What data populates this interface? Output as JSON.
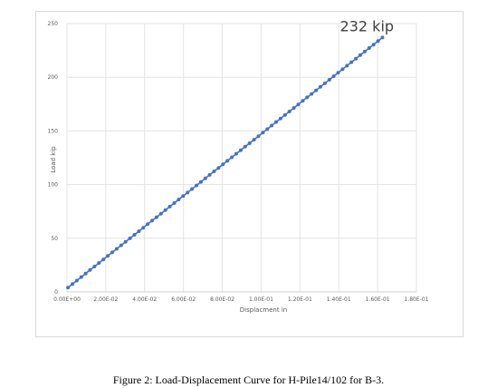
{
  "caption": "Figure 2: Load-Displacement Curve for H-Pile14/102 for B-3.",
  "chart_data": {
    "type": "line",
    "title": "",
    "xlabel": "Displacment in",
    "ylabel": "Load kip",
    "xlim": [
      0,
      0.18
    ],
    "ylim": [
      0,
      250
    ],
    "x_ticks": [
      0,
      0.02,
      0.04,
      0.06,
      0.08,
      0.1,
      0.12,
      0.14,
      0.16,
      0.18
    ],
    "x_tick_labels": [
      "0.00E+00",
      "2.00E-02",
      "4.00E-02",
      "6.00E-02",
      "8.00E-02",
      "1.00E-01",
      "1.20E-01",
      "1.40E-01",
      "1.60E-01",
      "1.80E-01"
    ],
    "y_ticks": [
      0,
      50,
      100,
      150,
      200,
      250
    ],
    "y_tick_labels": [
      "0",
      "50",
      "100",
      "150",
      "200",
      "250"
    ],
    "grid": true,
    "legend": "none",
    "marker": "circle",
    "series_color": "#4472c4",
    "annotation": {
      "text": "232 kip",
      "x": 0.1545,
      "y": 243
    },
    "series": [
      {
        "start": {
          "x": 0.0005,
          "y": 4
        },
        "end": {
          "x": 0.1625,
          "y": 237
        },
        "points": 72
      }
    ]
  }
}
